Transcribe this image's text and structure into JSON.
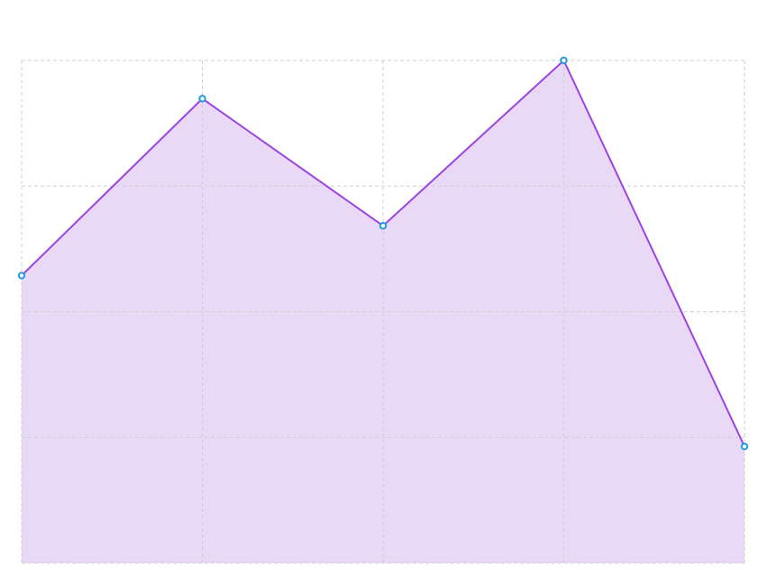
{
  "chart_data": {
    "type": "area",
    "x": [
      0,
      1,
      2,
      3,
      4
    ],
    "y_min": 0,
    "y_max": 100,
    "gridlines_y": [
      0,
      25,
      50,
      75,
      100
    ],
    "grid": true,
    "legend": "none",
    "series": [
      {
        "values": [
          57.2,
          92.4,
          67.1,
          100,
          23.2
        ]
      }
    ]
  },
  "colors": {
    "line": "#9b45e0",
    "fill": "#e9d9f7",
    "marker_stroke": "#1f9be0",
    "grid": "#cfcfcf"
  }
}
